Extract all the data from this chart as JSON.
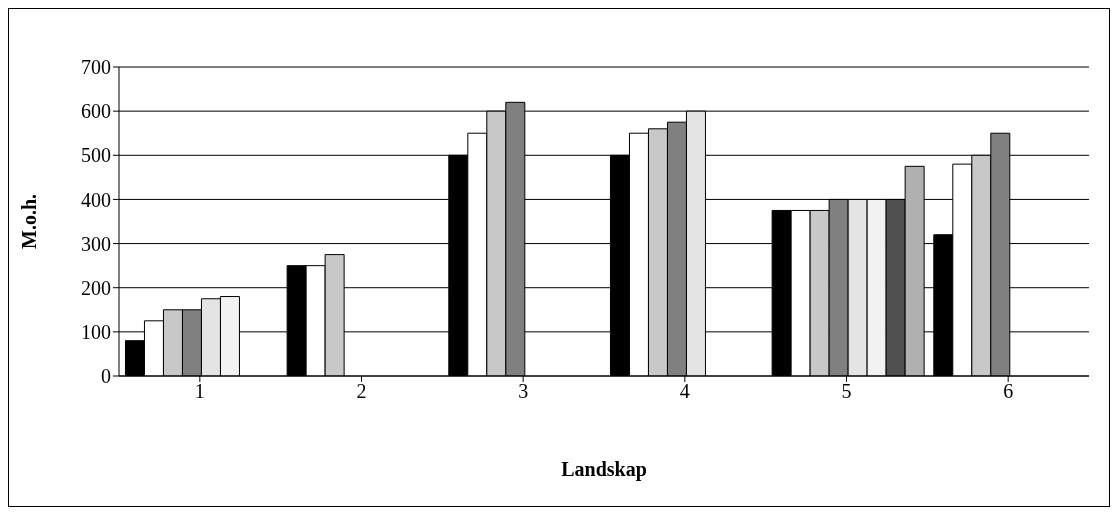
{
  "chart_data": {
    "type": "bar",
    "xlabel": "Landskap",
    "ylabel": "M.o.h.",
    "categories": [
      "1",
      "2",
      "3",
      "4",
      "5",
      "6"
    ],
    "series": [
      {
        "color": "#000000",
        "values": [
          80,
          250,
          500,
          500,
          375,
          320
        ]
      },
      {
        "color": "#ffffff",
        "values": [
          125,
          250,
          550,
          550,
          375,
          480
        ]
      },
      {
        "color": "#c8c8c8",
        "values": [
          150,
          275,
          600,
          560,
          375,
          500
        ]
      },
      {
        "color": "#808080",
        "values": [
          150,
          null,
          620,
          575,
          400,
          550
        ]
      },
      {
        "color": "#e4e4e4",
        "values": [
          175,
          null,
          null,
          600,
          400,
          null
        ]
      },
      {
        "color": "#f2f2f2",
        "values": [
          180,
          null,
          null,
          null,
          400,
          null
        ]
      },
      {
        "color": "#505050",
        "values": [
          null,
          null,
          null,
          null,
          400,
          null
        ]
      },
      {
        "color": "#b0b0b0",
        "values": [
          null,
          null,
          null,
          null,
          475,
          null
        ]
      }
    ],
    "ylim": [
      0,
      700
    ],
    "yticks": [
      0,
      100,
      200,
      300,
      400,
      500,
      600,
      700
    ],
    "grid": "y",
    "legend": false
  }
}
